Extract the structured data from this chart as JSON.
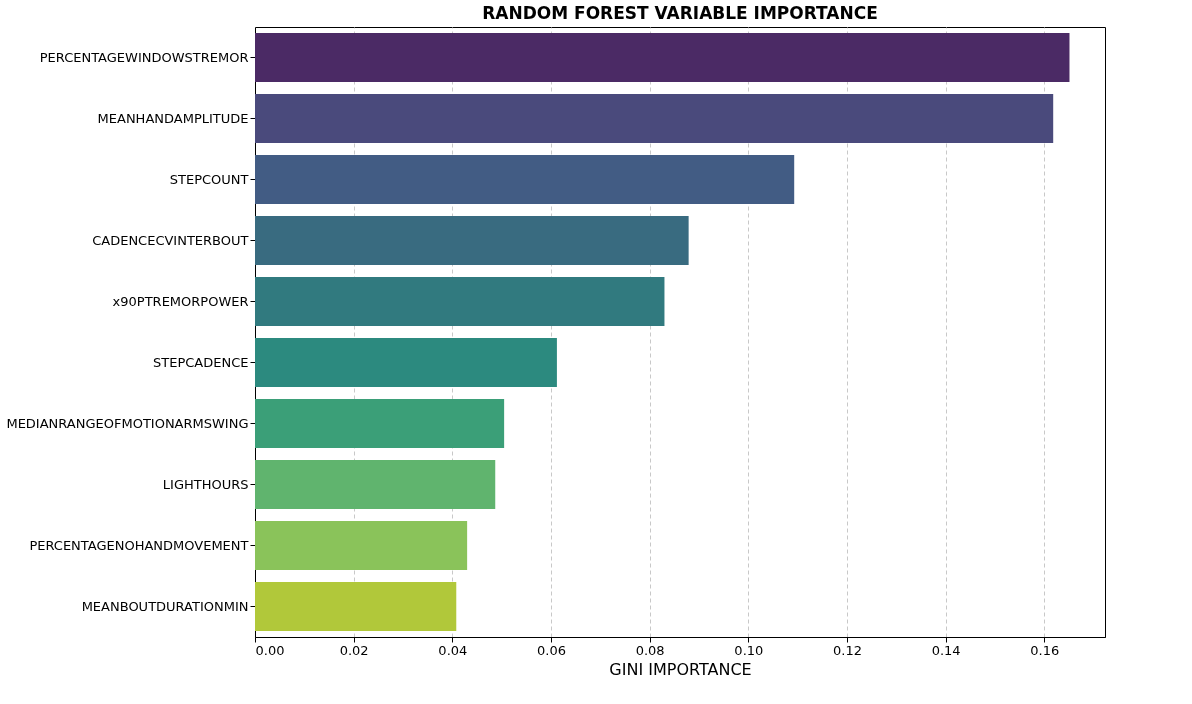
{
  "chart_data": {
    "type": "bar",
    "orientation": "horizontal",
    "title": "RANDOM FOREST VARIABLE IMPORTANCE",
    "xlabel": "GINI IMPORTANCE",
    "categories": [
      "PERCENTAGEWINDOWSTREMOR",
      "MEANHANDAMPLITUDE",
      "STEPCOUNT",
      "CADENCECVINTERBOUT",
      "x90PTREMORPOWER",
      "STEPCADENCE",
      "MEDIANRANGEOFMOTIONARMSWING",
      "LIGHTHOURS",
      "PERCENTAGENOHANDMOVEMENT",
      "MEANBOUTDURATIONMIN"
    ],
    "values": [
      0.1651,
      0.1618,
      0.1093,
      0.0879,
      0.083,
      0.0612,
      0.0505,
      0.0487,
      0.043,
      0.0408
    ],
    "colors": [
      "#4b2a65",
      "#4a4a7c",
      "#425c84",
      "#396b80",
      "#317a7f",
      "#2c8a7f",
      "#3b9f78",
      "#60b46e",
      "#8ac35a",
      "#b1c83a"
    ],
    "xlim": [
      0,
      0.1723
    ],
    "xticks": [
      {
        "value": 0,
        "label": "0.00"
      },
      {
        "value": 0.02,
        "label": "0.02"
      },
      {
        "value": 0.04,
        "label": "0.04"
      },
      {
        "value": 0.06,
        "label": "0.06"
      },
      {
        "value": 0.08,
        "label": "0.08"
      },
      {
        "value": 0.1,
        "label": "0.10"
      },
      {
        "value": 0.12,
        "label": "0.12"
      },
      {
        "value": 0.14,
        "label": "0.14"
      },
      {
        "value": 0.16,
        "label": "0.16"
      }
    ],
    "grid": "x"
  }
}
